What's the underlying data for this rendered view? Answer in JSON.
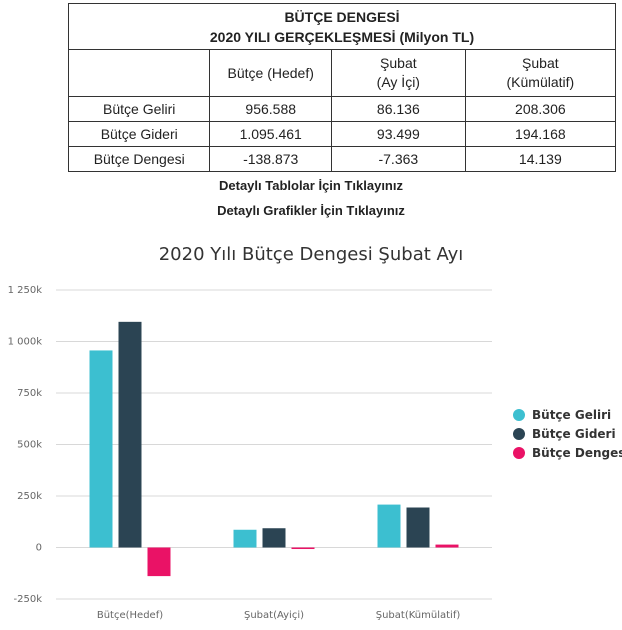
{
  "table": {
    "title_line1": "BÜTÇE DENGESİ",
    "title_line2": "2020 YILI GERÇEKLEŞMESİ (Milyon TL)",
    "headers": [
      "Bütçe (Hedef)",
      "Şubat\n(Ay İçi)",
      "Şubat\n(Kümülatif)"
    ],
    "rows": [
      {
        "label": "Bütçe Geliri",
        "values": [
          "956.588",
          "86.136",
          "208.306"
        ]
      },
      {
        "label": "Bütçe Gideri",
        "values": [
          "1.095.461",
          "93.499",
          "194.168"
        ]
      },
      {
        "label": "Bütçe Dengesi",
        "values": [
          "-138.873",
          "-7.363",
          "14.139"
        ]
      }
    ]
  },
  "links": {
    "tables": "Detaylı Tablolar İçin Tıklayınız",
    "charts": "Detaylı Grafikler İçin Tıklayınız"
  },
  "chart_data": {
    "type": "bar",
    "title": "2020 Yılı Bütçe Dengesi Şubat Ayı",
    "categories": [
      "Bütçe(Hedef)",
      "Şubat(Ayiçi)",
      "Şubat(Kümülatif)"
    ],
    "series": [
      {
        "name": "Bütçe Geliri",
        "color": "#3cbfd0",
        "values": [
          956588,
          86136,
          208306
        ]
      },
      {
        "name": "Bütçe Gideri",
        "color": "#2b4453",
        "values": [
          1095461,
          93499,
          194168
        ]
      },
      {
        "name": "Bütçe Dengesi",
        "color": "#ea1266",
        "values": [
          -138873,
          -7363,
          14139
        ]
      }
    ],
    "yticks": [
      "1 250k",
      "1 000k",
      "750k",
      "500k",
      "250k",
      "0",
      "-250k"
    ],
    "ylim": [
      -250000,
      1250000
    ],
    "grid": true,
    "legend": "right"
  }
}
